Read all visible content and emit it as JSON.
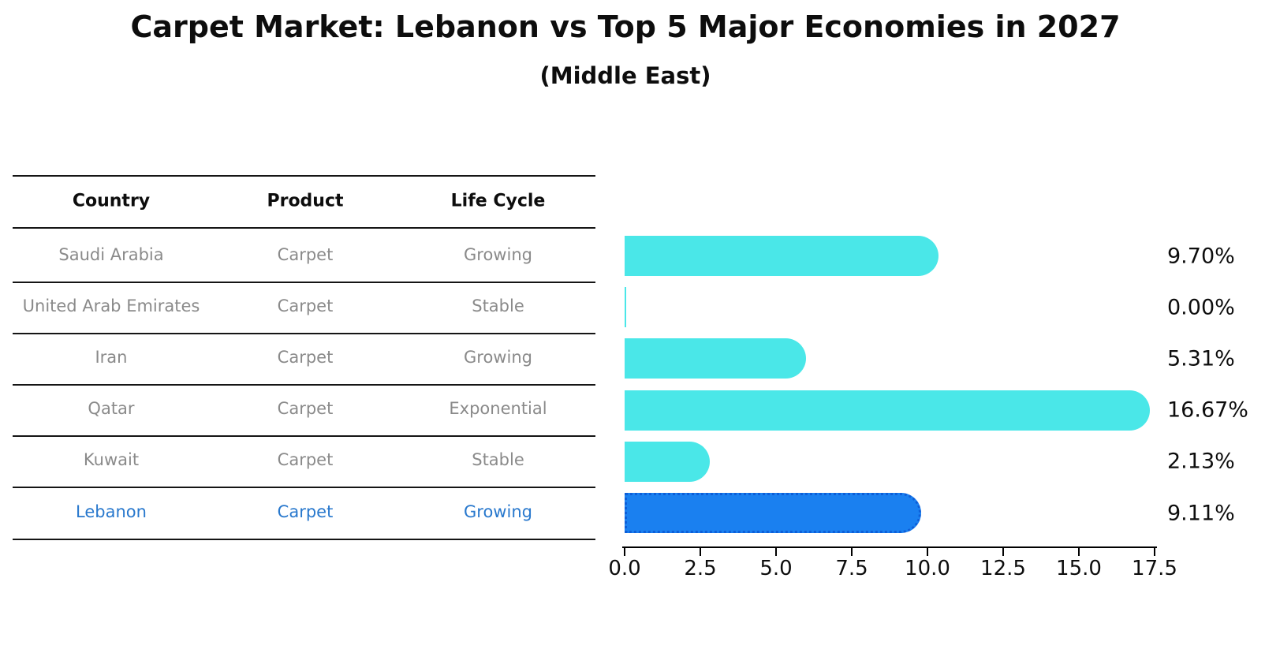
{
  "title": "Carpet Market: Lebanon vs Top 5 Major Economies in 2027",
  "subtitle": "(Middle East)",
  "table": {
    "headers": [
      "Country",
      "Product",
      "Life Cycle"
    ],
    "rows": [
      {
        "country": "Saudi Arabia",
        "product": "Carpet",
        "life_cycle": "Growing",
        "highlight": false
      },
      {
        "country": "United Arab Emirates",
        "product": "Carpet",
        "life_cycle": "Stable",
        "highlight": false
      },
      {
        "country": "Iran",
        "product": "Carpet",
        "life_cycle": "Growing",
        "highlight": false
      },
      {
        "country": "Qatar",
        "product": "Carpet",
        "life_cycle": "Exponential",
        "highlight": false
      },
      {
        "country": "Kuwait",
        "product": "Carpet",
        "life_cycle": "Stable",
        "highlight": false
      },
      {
        "country": "Lebanon",
        "product": "Carpet",
        "life_cycle": "Growing",
        "highlight": true
      }
    ]
  },
  "chart_data": {
    "type": "bar",
    "orientation": "horizontal",
    "title": "Carpet Market: Lebanon vs Top 5 Major Economies in 2027",
    "subtitle": "(Middle East)",
    "categories": [
      "Saudi Arabia",
      "United Arab Emirates",
      "Iran",
      "Qatar",
      "Kuwait",
      "Lebanon"
    ],
    "values": [
      9.7,
      0.0,
      5.31,
      16.67,
      2.13,
      9.11
    ],
    "value_labels": [
      "9.70%",
      "0.00%",
      "5.31%",
      "16.67%",
      "2.13%",
      "9.11%"
    ],
    "highlight_index": 5,
    "xlim": [
      0,
      17.5
    ],
    "x_tick_values": [
      0,
      2.5,
      5,
      7.5,
      10,
      12.5,
      15,
      17.5
    ],
    "x_tick_labels": [
      "0.0",
      "2.5",
      "5.0",
      "7.5",
      "10.0",
      "12.5",
      "15.0",
      "17.5"
    ],
    "grid": false,
    "legend": false,
    "bar_color_default": "#4ae7e8",
    "bar_color_highlight": "#1a80f0"
  },
  "colors": {
    "row_text": "#8a8a8a",
    "highlight_text": "#2878cd",
    "title_text": "#0d0d0d",
    "axis": "#000000"
  }
}
